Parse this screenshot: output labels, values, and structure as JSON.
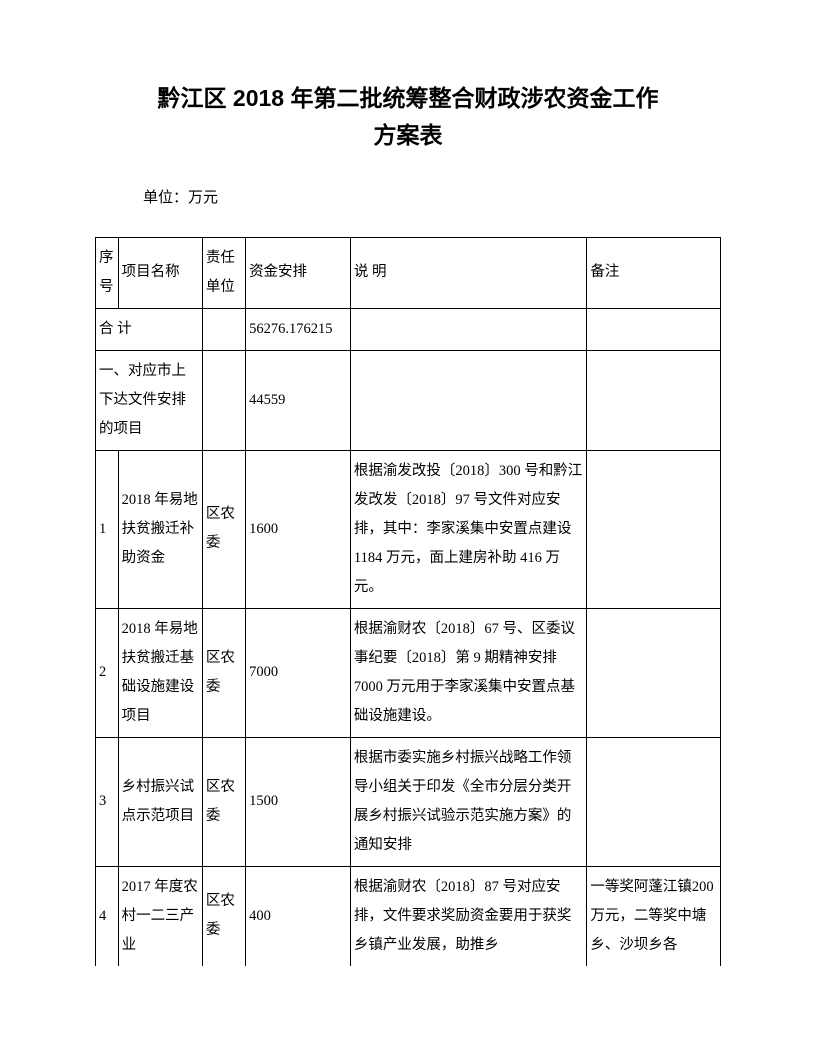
{
  "title_line1": "黔江区 2018 年第二批统筹整合财政涉农资金工作",
  "title_line2": "方案表",
  "unit_label": "单位：万元",
  "headers": {
    "seq": "序号",
    "name": "项目名称",
    "resp": "责任单位",
    "fund": "资金安排",
    "desc": "说  明",
    "note": "备注"
  },
  "total": {
    "label": "合 计",
    "fund": "56276.176215"
  },
  "section1": {
    "label": "一、对应市上下达文件安排的项目",
    "fund": "44559"
  },
  "rows": [
    {
      "seq": "1",
      "name": "2018 年易地扶贫搬迁补助资金",
      "resp": "区农委",
      "fund": "1600",
      "desc": "根据渝发改投〔2018〕300 号和黔江发改发〔2018〕97 号文件对应安排，其中：李家溪集中安置点建设 1184 万元，面上建房补助 416 万元。",
      "note": ""
    },
    {
      "seq": "2",
      "name": "2018 年易地扶贫搬迁基础设施建设项目",
      "resp": "区农委",
      "fund": "7000",
      "desc": "根据渝财农〔2018〕67 号、区委议事纪要〔2018〕第 9 期精神安排 7000 万元用于李家溪集中安置点基础设施建设。",
      "note": ""
    },
    {
      "seq": "3",
      "name": "乡村振兴试点示范项目",
      "resp": "区农委",
      "fund": "1500",
      "desc": "根据市委实施乡村振兴战略工作领导小组关于印发《全市分层分类开展乡村振兴试验示范实施方案》的通知安排",
      "note": ""
    },
    {
      "seq": "4",
      "name": "2017 年度农村一二三产业",
      "resp": "区农委",
      "fund": "400",
      "desc": "根据渝财农〔2018〕87 号对应安排，文件要求奖励资金要用于获奖乡镇产业发展，助推乡",
      "note": "一等奖阿蓬江镇200 万元，二等奖中塘乡、沙坝乡各"
    }
  ]
}
